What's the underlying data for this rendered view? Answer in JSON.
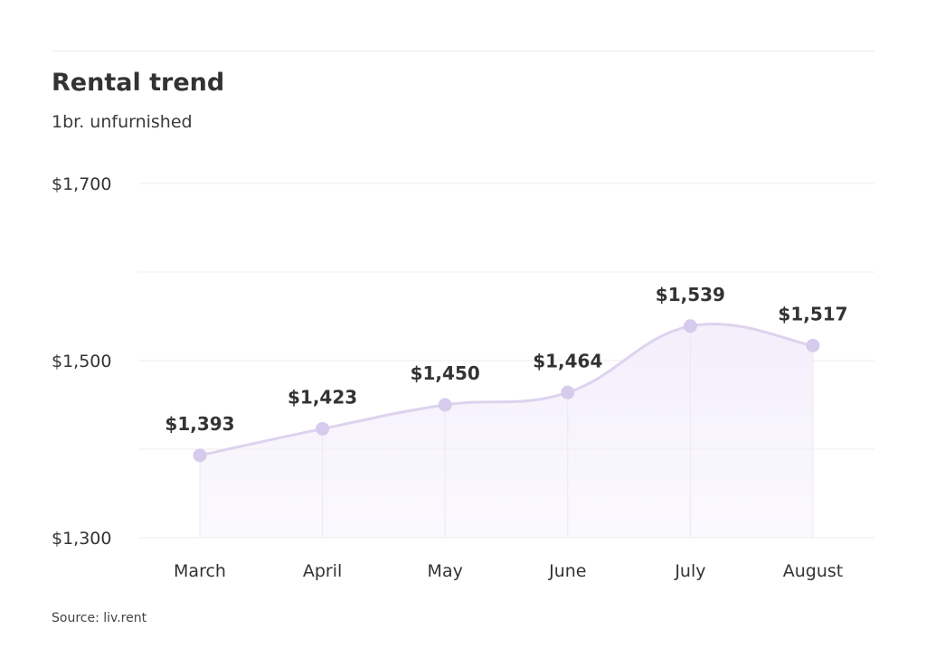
{
  "header": {
    "title": "Rental trend",
    "subtitle": "1br. unfurnished"
  },
  "footer": {
    "source": "Source: liv.rent"
  },
  "colors": {
    "line": "#ddd3ee",
    "marker": "#d6cbec",
    "area": "#f3effb",
    "grid": "#ececec"
  },
  "chart_data": {
    "type": "area",
    "categories": [
      "March",
      "April",
      "May",
      "June",
      "July",
      "August"
    ],
    "values": [
      1393,
      1423,
      1450,
      1464,
      1539,
      1517
    ],
    "data_labels": [
      "$1,393",
      "$1,423",
      "$1,450",
      "$1,464",
      "$1,539",
      "$1,517"
    ],
    "y_ticks": [
      1300,
      1500,
      1700
    ],
    "y_tick_labels": [
      "$1,300",
      "$1,500",
      "$1,700"
    ],
    "y_gridlines": [
      1300,
      1400,
      1500,
      1600,
      1700
    ],
    "ylim": [
      1300,
      1700
    ],
    "grid": true,
    "legend": "none",
    "smooth": true
  }
}
